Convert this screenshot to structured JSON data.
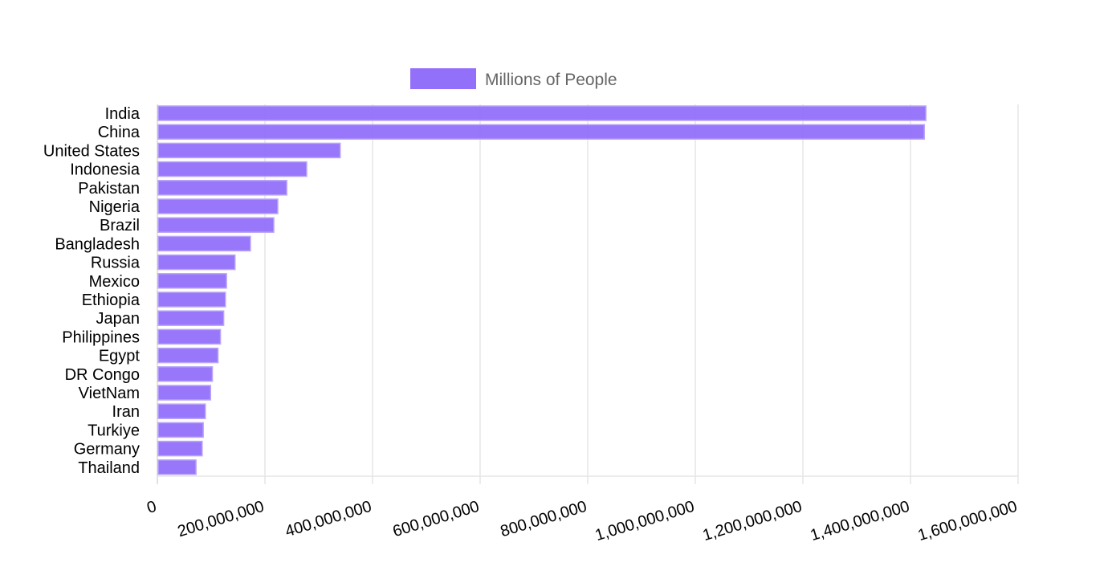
{
  "chart_data": {
    "type": "bar",
    "orientation": "horizontal",
    "categories": [
      "India",
      "China",
      "United States",
      "Indonesia",
      "Pakistan",
      "Nigeria",
      "Brazil",
      "Bangladesh",
      "Russia",
      "Mexico",
      "Ethiopia",
      "Japan",
      "Philippines",
      "Egypt",
      "DR Congo",
      "VietNam",
      "Iran",
      "Turkiye",
      "Germany",
      "Thailand"
    ],
    "series": [
      {
        "name": "Millions of People",
        "color": "#9370fa",
        "values": [
          1428600000,
          1425700000,
          339900000,
          277500000,
          240500000,
          223800000,
          216400000,
          173000000,
          144400000,
          128500000,
          126500000,
          123300000,
          117300000,
          112700000,
          102300000,
          98900000,
          89200000,
          85300000,
          83300000,
          71800000
        ]
      }
    ],
    "xticks": [
      "0",
      "200,000,000",
      "400,000,000",
      "600,000,000",
      "800,000,000",
      "1,000,000,000",
      "1,200,000,000",
      "1,400,000,000",
      "1,600,000,000"
    ],
    "xlim": [
      0,
      1600000000
    ],
    "grid": true,
    "legend_position": "top-center"
  }
}
